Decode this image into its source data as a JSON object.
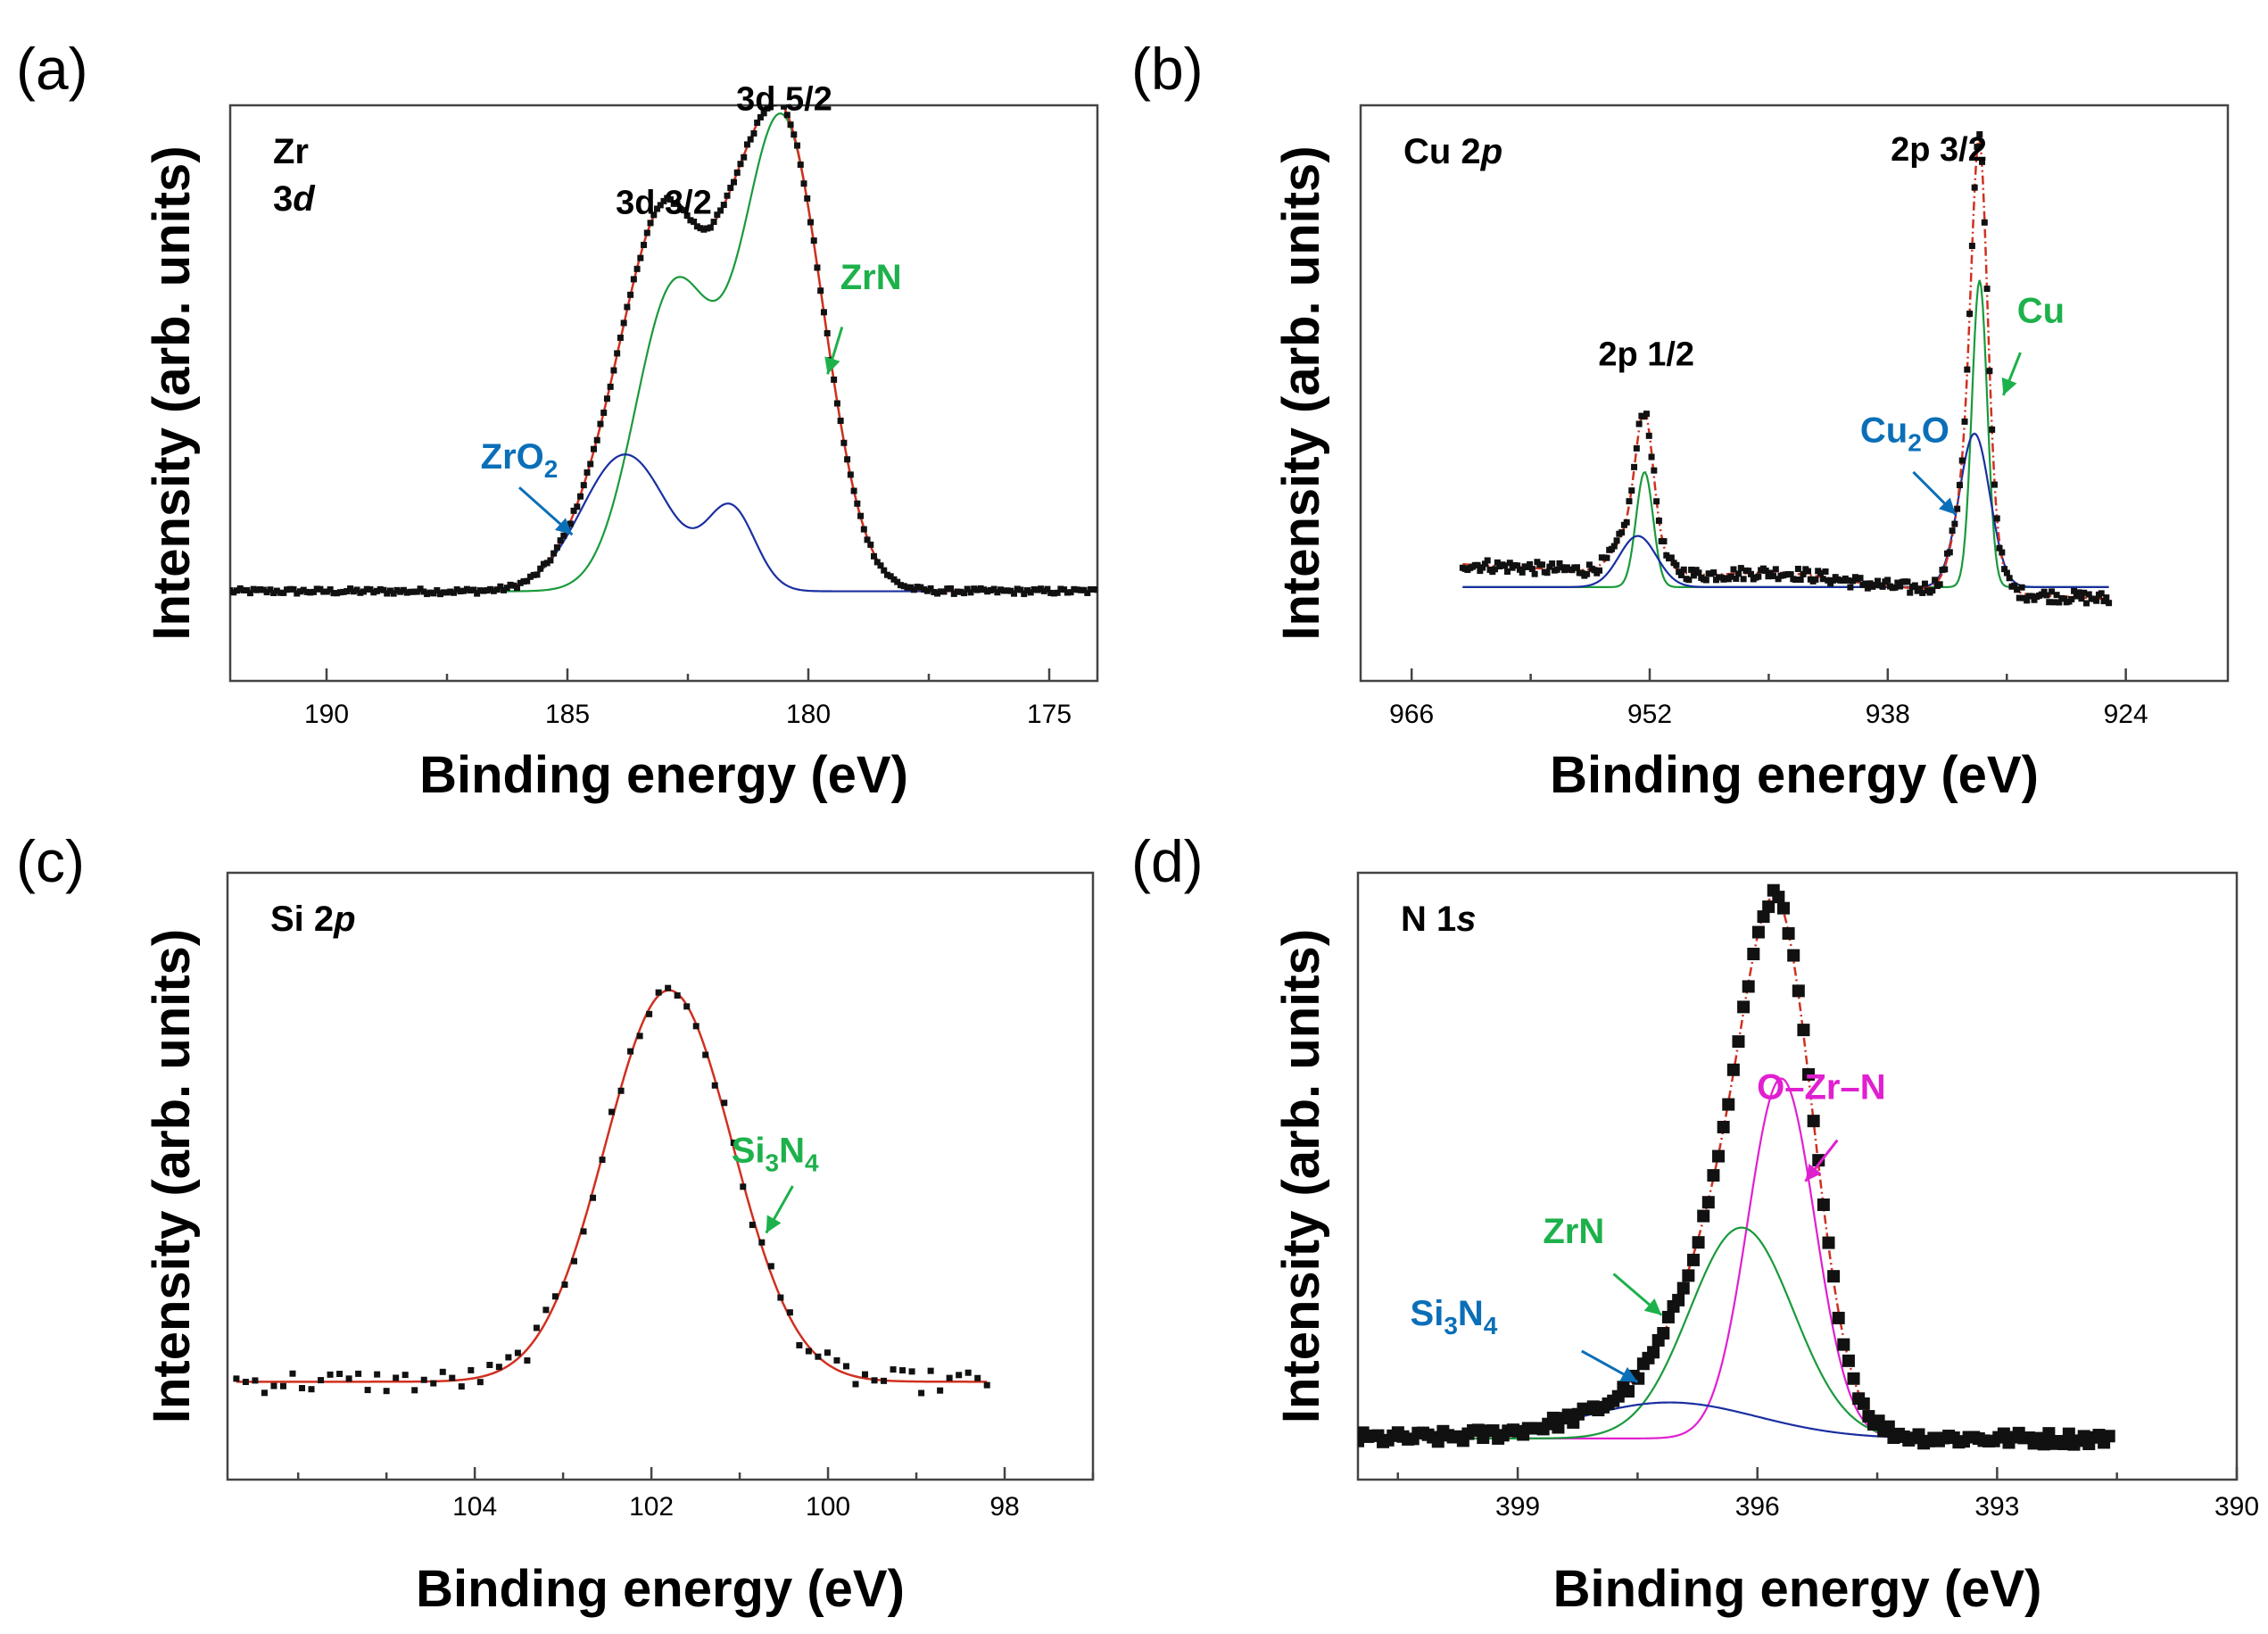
{
  "figure": {
    "ylabel": "Intensity (arb. units)",
    "xlabel": "Binding energy (eV)"
  },
  "colors": {
    "data": "#111111",
    "envelope": "#d03020",
    "component_green": "#1a9a3c",
    "component_blue": "#1a2fa0",
    "component_magenta": "#e020d0",
    "label_green": "#1db14b",
    "label_blue": "#0b6fb8",
    "label_magenta": "#e020d0"
  },
  "chart_data": [
    {
      "id": "a",
      "type": "scatter",
      "panel_letter": "(a)",
      "element_label": {
        "main": "Zr",
        "line2": "3",
        "line2_italic": "d"
      },
      "xlabel": "Binding energy (eV)",
      "ylabel": "Intensity (arb. units)",
      "xlim": [
        192,
        174
      ],
      "ylim": [
        -0.19,
        1.03
      ],
      "xticks": [
        190,
        185,
        180,
        175
      ],
      "baseline": 0.0,
      "peak_labels": [
        {
          "text": "3d 3/2",
          "x": 183.0,
          "y": 0.8
        },
        {
          "text": "3d 5/2",
          "x": 180.5,
          "y": 1.02
        }
      ],
      "components": [
        {
          "name": "ZrN",
          "color": "component_green",
          "peaks": [
            {
              "center": 180.55,
              "amp": 1.0,
              "sigma": 0.85
            },
            {
              "center": 182.8,
              "amp": 0.63,
              "sigma": 0.8
            }
          ]
        },
        {
          "name": "ZrO2",
          "color": "component_blue",
          "peaks": [
            {
              "center": 183.8,
              "amp": 0.29,
              "sigma": 0.9
            },
            {
              "center": 181.6,
              "amp": 0.17,
              "sigma": 0.5
            }
          ]
        }
      ],
      "annotations": [
        {
          "text": "ZrN",
          "color": "label_green",
          "tx": 178.7,
          "ty": 0.64,
          "ax1": 179.3,
          "ay1": 0.56,
          "ax2": 179.6,
          "ay2": 0.46
        },
        {
          "text": "ZrO",
          "sub": "2",
          "color": "label_blue",
          "tx": 186.0,
          "ty": 0.26,
          "ax1": 186.0,
          "ay1": 0.22,
          "ax2": 184.9,
          "ay2": 0.12
        }
      ],
      "data_range": [
        192,
        174
      ]
    },
    {
      "id": "b",
      "type": "scatter",
      "panel_letter": "(b)",
      "element_label": {
        "main": "Cu 2",
        "italic": "p"
      },
      "xlabel": "Binding energy (eV)",
      "ylabel": "Intensity (arb. units)",
      "xlim": [
        969,
        918
      ],
      "ylim": [
        -0.22,
        1.13
      ],
      "xticks": [
        966,
        952,
        938,
        924
      ],
      "baseline": 0.0,
      "peak_labels": [
        {
          "text": "2p 1/2",
          "x": 952.2,
          "y": 0.52
        },
        {
          "text": "2p 3/2",
          "x": 935.0,
          "y": 1.0
        }
      ],
      "components": [
        {
          "name": "Cu",
          "color": "component_green",
          "peaks": [
            {
              "center": 932.6,
              "amp": 0.72,
              "sigma": 0.45
            },
            {
              "center": 952.3,
              "amp": 0.27,
              "sigma": 0.5
            }
          ]
        },
        {
          "name": "Cu2O",
          "color": "component_blue",
          "peaks": [
            {
              "center": 932.9,
              "amp": 0.36,
              "sigma": 0.9
            },
            {
              "center": 952.7,
              "amp": 0.12,
              "sigma": 1.1
            }
          ]
        }
      ],
      "annotations": [
        {
          "text": "Cu",
          "color": "label_green",
          "tx": 929.0,
          "ty": 0.62,
          "ax1": 930.2,
          "ay1": 0.55,
          "ax2": 931.2,
          "ay2": 0.45
        },
        {
          "text": "Cu",
          "sub": "2",
          "tail": "O",
          "color": "label_blue",
          "tx": 937.0,
          "ty": 0.34,
          "ax1": 936.5,
          "ay1": 0.27,
          "ax2": 934.0,
          "ay2": 0.17
        }
      ],
      "data_range": [
        963,
        925
      ]
    },
    {
      "id": "c",
      "type": "scatter",
      "panel_letter": "(c)",
      "element_label": {
        "main": "Si 2",
        "italic": "p"
      },
      "xlabel": "Binding energy (eV)",
      "ylabel": "Intensity (arb. units)",
      "xlim": [
        106.8,
        97.0
      ],
      "ylim": [
        -0.25,
        1.3
      ],
      "xticks": [
        104,
        102,
        100,
        98
      ],
      "baseline": 0.0,
      "peak_labels": [],
      "components": [
        {
          "name": "Si3N4",
          "color": "envelope",
          "peaks": [
            {
              "center": 101.8,
              "amp": 1.0,
              "sigma": 0.72
            }
          ]
        }
      ],
      "annotations": [
        {
          "text": "Si",
          "sub": "3",
          "tail": "N",
          "sub2": "4",
          "color": "label_green",
          "tx": 100.6,
          "ty": 0.56,
          "ax1": 100.4,
          "ay1": 0.5,
          "ax2": 100.7,
          "ay2": 0.38
        }
      ],
      "data_range": [
        106.7,
        98.2
      ]
    },
    {
      "id": "d",
      "type": "scatter",
      "panel_letter": "(d)",
      "element_label": {
        "main": "N 1",
        "italic": "s"
      },
      "xlabel": "Binding energy (eV)",
      "ylabel": "Intensity (arb. units)",
      "xlim": [
        401.0,
        390.0
      ],
      "ylim": [
        -0.08,
        1.1
      ],
      "xticks": [
        399,
        396,
        393,
        390
      ],
      "baseline": 0.0,
      "peak_labels": [],
      "components": [
        {
          "name": "O–Zr–N",
          "color": "component_magenta",
          "peaks": [
            {
              "center": 395.7,
              "amp": 0.7,
              "sigma": 0.42
            }
          ]
        },
        {
          "name": "ZrN",
          "color": "component_green",
          "peaks": [
            {
              "center": 396.2,
              "amp": 0.41,
              "sigma": 0.65
            }
          ]
        },
        {
          "name": "Si3N4",
          "color": "component_blue",
          "peaks": [
            {
              "center": 397.1,
              "amp": 0.07,
              "sigma": 1.1
            }
          ]
        }
      ],
      "annotations": [
        {
          "text": "O–Zr–N",
          "color": "label_magenta",
          "tx": 395.2,
          "ty": 0.66,
          "ax1": 395.0,
          "ay1": 0.58,
          "ax2": 395.4,
          "ay2": 0.5
        },
        {
          "text": "ZrN",
          "color": "label_green",
          "tx": 398.3,
          "ty": 0.38,
          "ax1": 397.8,
          "ay1": 0.32,
          "ax2": 397.2,
          "ay2": 0.24
        },
        {
          "text": "Si",
          "sub": "3",
          "tail": "N",
          "sub2": "4",
          "color": "label_blue",
          "tx": 399.8,
          "ty": 0.22,
          "ax1": 398.2,
          "ay1": 0.17,
          "ax2": 397.5,
          "ay2": 0.11
        }
      ],
      "data_range": [
        401.0,
        391.6
      ]
    }
  ]
}
